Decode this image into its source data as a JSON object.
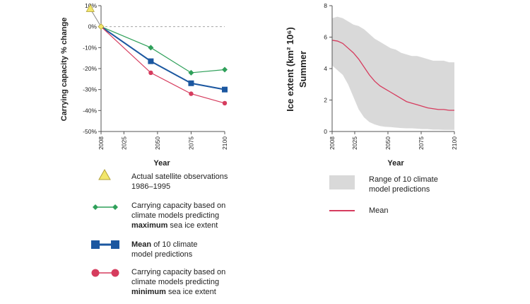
{
  "chart_data": [
    {
      "type": "line",
      "title": "",
      "xlabel": "Year",
      "ylabel": "Carrying capacity % change",
      "x_ticks": [
        "2008",
        "2025",
        "2050",
        "2075",
        "2100"
      ],
      "x_tick_values": [
        2008,
        2025,
        2050,
        2075,
        2100
      ],
      "y_ticks": [
        "10%",
        "0%",
        "-10%",
        "-20%",
        "-30%",
        "-40%",
        "-50%"
      ],
      "y_tick_values": [
        10,
        0,
        -10,
        -20,
        -30,
        -40,
        -50
      ],
      "xlim": [
        2008,
        2100
      ],
      "ylim": [
        -50,
        10
      ],
      "zero_line": "dashed",
      "observation": {
        "name": "Actual satellite observations 1986–1995",
        "x": 2000,
        "y": 8.5,
        "color": "#f2e66b"
      },
      "series": [
        {
          "name": "maximum",
          "color": "#2fa05a",
          "marker": "diamond",
          "x": [
            2008,
            2045,
            2075,
            2100
          ],
          "values": [
            0,
            -10,
            -22,
            -20.5
          ]
        },
        {
          "name": "mean",
          "color": "#1b57a0",
          "marker": "square",
          "x": [
            2008,
            2045,
            2075,
            2100
          ],
          "values": [
            0,
            -16.5,
            -27,
            -30
          ]
        },
        {
          "name": "minimum",
          "color": "#d63c5e",
          "marker": "circle",
          "x": [
            2008,
            2045,
            2075,
            2100
          ],
          "values": [
            0,
            -22,
            -32,
            -36.5
          ]
        }
      ]
    },
    {
      "type": "area",
      "title": "",
      "xlabel": "Year",
      "ylabel_line1": "Ice extent (km² 10⁶)",
      "ylabel_line2": "Summer",
      "x_ticks": [
        "2008",
        "2025",
        "2050",
        "2075",
        "2100"
      ],
      "x_tick_values": [
        2008,
        2025,
        2050,
        2075,
        2100
      ],
      "y_ticks": [
        "0",
        "2",
        "4",
        "6",
        "8"
      ],
      "y_tick_values": [
        0,
        2,
        4,
        6,
        8
      ],
      "xlim": [
        2008,
        2100
      ],
      "ylim": [
        0,
        8
      ],
      "x": [
        2008,
        2012,
        2016,
        2020,
        2024,
        2028,
        2032,
        2036,
        2040,
        2044,
        2048,
        2052,
        2056,
        2060,
        2064,
        2068,
        2072,
        2076,
        2080,
        2084,
        2088,
        2092,
        2096,
        2100
      ],
      "range_band": {
        "name": "Range of 10 climate model predictions",
        "color": "#d9d9d9",
        "upper": [
          7.2,
          7.3,
          7.2,
          7.0,
          6.8,
          6.7,
          6.5,
          6.2,
          5.9,
          5.7,
          5.5,
          5.3,
          5.2,
          5.0,
          4.9,
          4.8,
          4.8,
          4.7,
          4.6,
          4.5,
          4.5,
          4.5,
          4.4,
          4.4
        ],
        "lower": [
          4.2,
          3.9,
          3.6,
          3.0,
          2.2,
          1.4,
          0.9,
          0.6,
          0.45,
          0.35,
          0.3,
          0.28,
          0.25,
          0.22,
          0.2,
          0.2,
          0.18,
          0.15,
          0.15,
          0.12,
          0.12,
          0.1,
          0.1,
          0.1
        ]
      },
      "series": [
        {
          "name": "Mean",
          "color": "#d63c5e",
          "values": [
            5.8,
            5.75,
            5.6,
            5.3,
            5.0,
            4.6,
            4.1,
            3.6,
            3.2,
            2.9,
            2.7,
            2.5,
            2.3,
            2.1,
            1.9,
            1.8,
            1.7,
            1.6,
            1.5,
            1.45,
            1.4,
            1.4,
            1.35,
            1.35
          ]
        }
      ]
    }
  ],
  "legend_left": {
    "observation_text1": "Actual satellite observations",
    "observation_text2": "1986–1995",
    "max_text1": "Carrying capacity based on",
    "max_text2": "climate models predicting",
    "max_bold": "maximum",
    "max_text3": "sea ice extent",
    "mean_bold": "Mean",
    "mean_text1": "of 10 climate",
    "mean_text2": "model predictions",
    "min_text1": "Carrying capacity based on",
    "min_text2": "climate models predicting",
    "min_bold": "minimum",
    "min_text3": "sea ice extent"
  },
  "legend_right": {
    "range_text1": "Range of 10 climate",
    "range_text2": "model predictions",
    "mean_text": "Mean"
  }
}
